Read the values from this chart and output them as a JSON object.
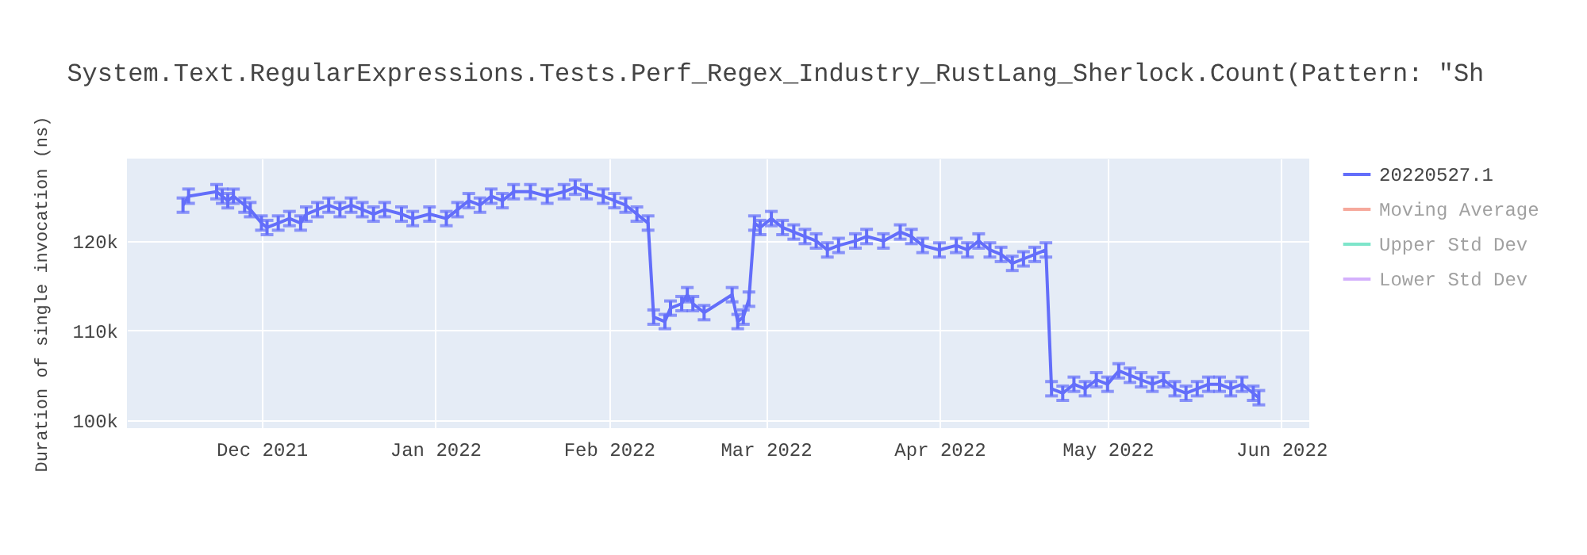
{
  "chart_data": {
    "type": "line",
    "title": "System.Text.RegularExpressions.Tests.Perf_Regex_Industry_RustLang_Sherlock.Count(Pattern: \"Sh",
    "ylabel": "Duration of single invocation (ns)",
    "x": [
      "2021-11-17",
      "2021-11-18",
      "2021-11-23",
      "2021-11-24",
      "2021-11-25",
      "2021-11-26",
      "2021-11-28",
      "2021-11-29",
      "2021-12-01",
      "2021-12-02",
      "2021-12-04",
      "2021-12-06",
      "2021-12-08",
      "2021-12-09",
      "2021-12-11",
      "2021-12-13",
      "2021-12-15",
      "2021-12-17",
      "2021-12-19",
      "2021-12-21",
      "2021-12-23",
      "2021-12-26",
      "2021-12-28",
      "2021-12-31",
      "2022-01-03",
      "2022-01-05",
      "2022-01-07",
      "2022-01-09",
      "2022-01-11",
      "2022-01-13",
      "2022-01-15",
      "2022-01-18",
      "2022-01-21",
      "2022-01-24",
      "2022-01-26",
      "2022-01-28",
      "2022-01-31",
      "2022-02-02",
      "2022-02-04",
      "2022-02-06",
      "2022-02-08",
      "2022-02-09",
      "2022-02-11",
      "2022-02-12",
      "2022-02-14",
      "2022-02-15",
      "2022-02-16",
      "2022-02-18",
      "2022-02-23",
      "2022-02-24",
      "2022-02-25",
      "2022-02-26",
      "2022-02-27",
      "2022-02-28",
      "2022-03-02",
      "2022-03-04",
      "2022-03-06",
      "2022-03-08",
      "2022-03-10",
      "2022-03-12",
      "2022-03-14",
      "2022-03-17",
      "2022-03-19",
      "2022-03-22",
      "2022-03-25",
      "2022-03-27",
      "2022-03-29",
      "2022-04-01",
      "2022-04-04",
      "2022-04-06",
      "2022-04-08",
      "2022-04-10",
      "2022-04-12",
      "2022-04-14",
      "2022-04-16",
      "2022-04-18",
      "2022-04-20",
      "2022-04-21",
      "2022-04-23",
      "2022-04-25",
      "2022-04-27",
      "2022-04-29",
      "2022-05-01",
      "2022-05-03",
      "2022-05-05",
      "2022-05-07",
      "2022-05-09",
      "2022-05-11",
      "2022-05-13",
      "2022-05-15",
      "2022-05-17",
      "2022-05-19",
      "2022-05-21",
      "2022-05-23",
      "2022-05-25",
      "2022-05-27",
      "2022-05-28"
    ],
    "series": [
      {
        "name": "20220527.1",
        "color": "#636efa",
        "values": [
          124000,
          125000,
          125500,
          125000,
          124500,
          125000,
          124000,
          123500,
          122000,
          121500,
          122000,
          122500,
          122000,
          123000,
          123500,
          124000,
          123500,
          124000,
          123500,
          123000,
          123500,
          123000,
          122500,
          123000,
          122500,
          123500,
          124500,
          124000,
          125000,
          124500,
          125500,
          125500,
          125000,
          125500,
          126000,
          125500,
          125000,
          124500,
          124000,
          123000,
          122000,
          111500,
          111000,
          112500,
          113000,
          114000,
          113000,
          112000,
          114000,
          111000,
          111500,
          113500,
          122000,
          121500,
          122500,
          121500,
          121000,
          120500,
          120000,
          119000,
          119500,
          120000,
          120500,
          120000,
          121000,
          120500,
          119500,
          119000,
          119500,
          119000,
          120000,
          119000,
          118500,
          117500,
          118000,
          118500,
          119000,
          103500,
          103000,
          104000,
          103500,
          104500,
          104000,
          105500,
          105000,
          104500,
          104000,
          104500,
          103500,
          103000,
          103500,
          104000,
          104000,
          103500,
          104000,
          103000,
          102500
        ],
        "errors": [
          800,
          800,
          800,
          800,
          800,
          800,
          800,
          800,
          800,
          800,
          800,
          800,
          800,
          800,
          800,
          800,
          800,
          800,
          800,
          800,
          800,
          800,
          800,
          800,
          800,
          800,
          800,
          800,
          800,
          800,
          800,
          800,
          800,
          800,
          800,
          800,
          800,
          800,
          800,
          800,
          800,
          800,
          800,
          800,
          800,
          800,
          800,
          800,
          800,
          800,
          800,
          800,
          800,
          800,
          800,
          800,
          800,
          800,
          800,
          800,
          800,
          800,
          800,
          800,
          800,
          800,
          800,
          800,
          800,
          800,
          800,
          800,
          800,
          800,
          800,
          800,
          800,
          800,
          800,
          800,
          800,
          800,
          800,
          800,
          800,
          800,
          800,
          800,
          800,
          800,
          800,
          800,
          800,
          800,
          800,
          800,
          800
        ]
      },
      {
        "name": "Moving Average",
        "color": "#ef553b",
        "values": [
          null,
          null,
          null,
          null,
          null,
          null,
          null,
          null,
          null,
          null,
          null,
          null,
          null,
          null,
          null,
          null,
          null,
          null,
          null,
          null,
          null,
          null,
          null,
          null,
          null,
          null,
          null,
          null,
          null,
          null,
          null,
          null,
          null,
          null,
          null,
          null,
          null,
          null,
          null,
          null,
          null,
          null,
          null,
          null,
          null,
          null,
          null,
          null,
          null,
          null,
          null,
          null,
          null,
          null,
          null,
          null,
          null,
          null,
          null,
          null,
          null,
          null,
          null,
          null,
          null,
          null,
          null,
          null,
          null,
          null,
          null,
          null,
          null,
          null,
          null,
          null,
          null,
          null,
          null,
          null,
          null,
          null,
          null,
          null,
          null,
          null,
          null,
          null,
          null,
          null,
          null,
          null,
          null,
          null,
          null,
          null,
          null
        ]
      },
      {
        "name": "Upper Std Dev",
        "color": "#00cc96",
        "values": [
          null,
          null,
          null,
          null,
          null,
          null,
          null,
          null,
          null,
          null,
          null,
          null,
          null,
          null,
          null,
          null,
          null,
          null,
          null,
          null,
          null,
          null,
          null,
          null,
          null,
          null,
          null,
          null,
          null,
          null,
          null,
          null,
          null,
          null,
          null,
          null,
          null,
          null,
          null,
          null,
          null,
          null,
          null,
          null,
          null,
          null,
          null,
          null,
          null,
          null,
          null,
          null,
          null,
          null,
          null,
          null,
          null,
          null,
          null,
          null,
          null,
          null,
          null,
          null,
          null,
          null,
          null,
          null,
          null,
          null,
          null,
          null,
          null,
          null,
          null,
          null,
          null,
          null,
          null,
          null,
          null,
          null,
          null,
          null,
          null,
          null,
          null,
          null,
          null,
          null,
          null,
          null,
          null,
          null,
          null,
          null,
          null
        ]
      },
      {
        "name": "Lower Std Dev",
        "color": "#ab63fa",
        "values": [
          null,
          null,
          null,
          null,
          null,
          null,
          null,
          null,
          null,
          null,
          null,
          null,
          null,
          null,
          null,
          null,
          null,
          null,
          null,
          null,
          null,
          null,
          null,
          null,
          null,
          null,
          null,
          null,
          null,
          null,
          null,
          null,
          null,
          null,
          null,
          null,
          null,
          null,
          null,
          null,
          null,
          null,
          null,
          null,
          null,
          null,
          null,
          null,
          null,
          null,
          null,
          null,
          null,
          null,
          null,
          null,
          null,
          null,
          null,
          null,
          null,
          null,
          null,
          null,
          null,
          null,
          null,
          null,
          null,
          null,
          null,
          null,
          null,
          null,
          null,
          null,
          null,
          null,
          null,
          null,
          null,
          null,
          null,
          null,
          null,
          null,
          null,
          null,
          null,
          null,
          null,
          null,
          null,
          null,
          null,
          null,
          null
        ]
      }
    ],
    "xlim": [
      "2021-11-07",
      "2022-06-06"
    ],
    "xticks": [
      {
        "value": "2021-12-01",
        "label": "Dec 2021"
      },
      {
        "value": "2022-01-01",
        "label": "Jan 2022"
      },
      {
        "value": "2022-02-01",
        "label": "Feb 2022"
      },
      {
        "value": "2022-03-01",
        "label": "Mar 2022"
      },
      {
        "value": "2022-04-01",
        "label": "Apr 2022"
      },
      {
        "value": "2022-05-01",
        "label": "May 2022"
      },
      {
        "value": "2022-06-01",
        "label": "Jun 2022"
      }
    ],
    "ylim": [
      99100,
      129200
    ],
    "yticks": [
      {
        "value": 100000,
        "label": "100k"
      },
      {
        "value": 110000,
        "label": "110k"
      },
      {
        "value": 120000,
        "label": "120k"
      }
    ],
    "grid": true,
    "legend": "top right",
    "marker": "none",
    "line_style": "solid"
  }
}
